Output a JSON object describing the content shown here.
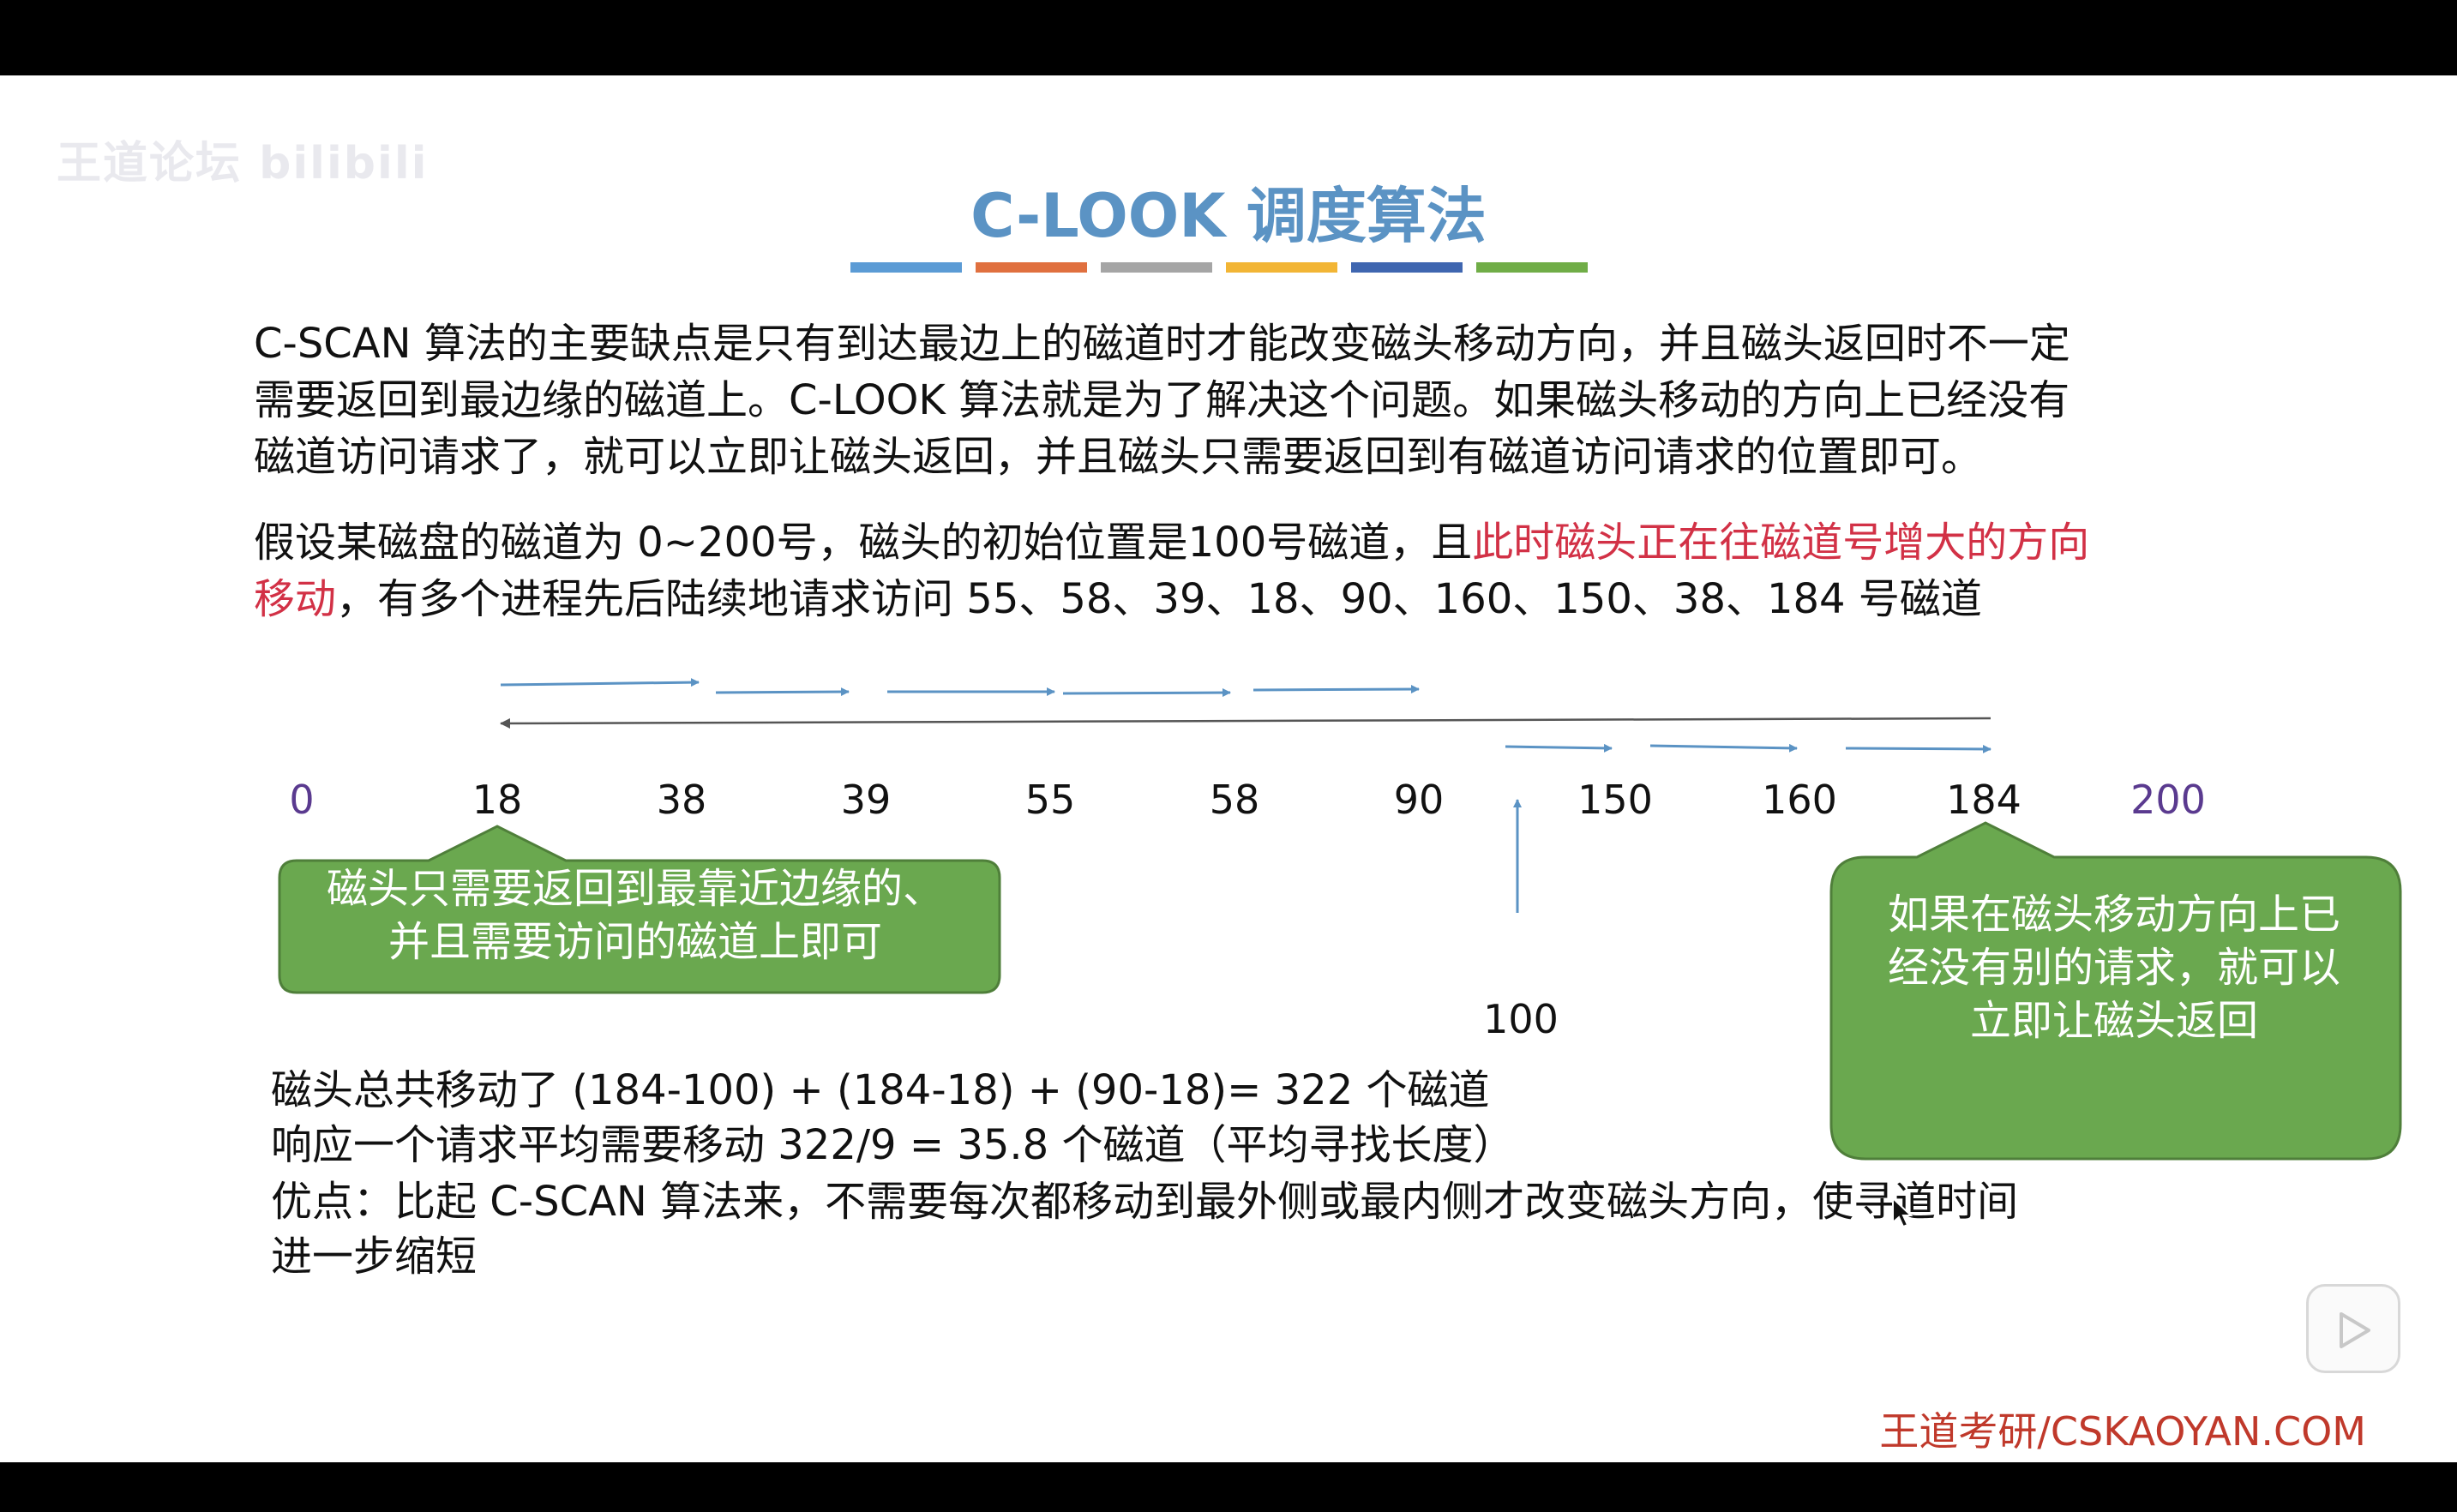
{
  "watermark": "王道论坛 bilibili",
  "title": "C-LOOK 调度算法",
  "colorbars": [
    "#5b9bd5",
    "#e0703f",
    "#a5a5a5",
    "#f2b535",
    "#3f66b0",
    "#70ad47"
  ],
  "intro": {
    "line1": "C-SCAN 算法的主要缺点是只有到达最边上的磁道时才能改变磁头移动方向，并且磁头返回时不一定",
    "line2": "需要返回到最边缘的磁道上。C-LOOK 算法就是为了解决这个问题。如果磁头移动的方向上已经没有",
    "line3": "磁道访问请求了，就可以立即让磁头返回，并且磁头只需要返回到有磁道访问请求的位置即可。"
  },
  "problem": {
    "part1": "假设某磁盘的磁道为 0~200号，磁头的初始位置是100号磁道，且",
    "highlight1": "此时磁头正在往磁道号增大的方向",
    "highlight2": "移动",
    "part2": "，有多个进程先后陆续地请求访问 55、58、39、18、90、160、150、38、184 号磁道"
  },
  "tracks": [
    "0",
    "18",
    "38",
    "39",
    "55",
    "58",
    "90",
    "150",
    "160",
    "184",
    "200"
  ],
  "start_track": "100",
  "callouts": {
    "left_line1": "磁头只需要返回到最靠近边缘的、",
    "left_line2": "并且需要访问的磁道上即可",
    "right_line1": "如果在磁头移动方向上已",
    "right_line2": "经没有别的请求，就可以",
    "right_line3": "立即让磁头返回"
  },
  "summary": {
    "total": "磁头总共移动了 (184-100) + (184-18) + (90-18)= 322 个磁道",
    "average": "响应一个请求平均需要移动 322/9 = 35.8 个磁道（平均寻找长度）",
    "advantage1": "优点：比起 C-SCAN 算法来，不需要每次都移动到最外侧或最内侧才改变磁头方向，使寻道时间",
    "advantage2": "进一步缩短"
  },
  "footer": "王道考研/CSKAOYAN.COM",
  "colors": {
    "title": "#5b93c4",
    "highlight": "#d23146",
    "callout": "#6aa84f",
    "arrow": "#5b93c4",
    "footer": "#c0392b"
  },
  "icons": [
    "play-icon",
    "cursor-icon"
  ]
}
